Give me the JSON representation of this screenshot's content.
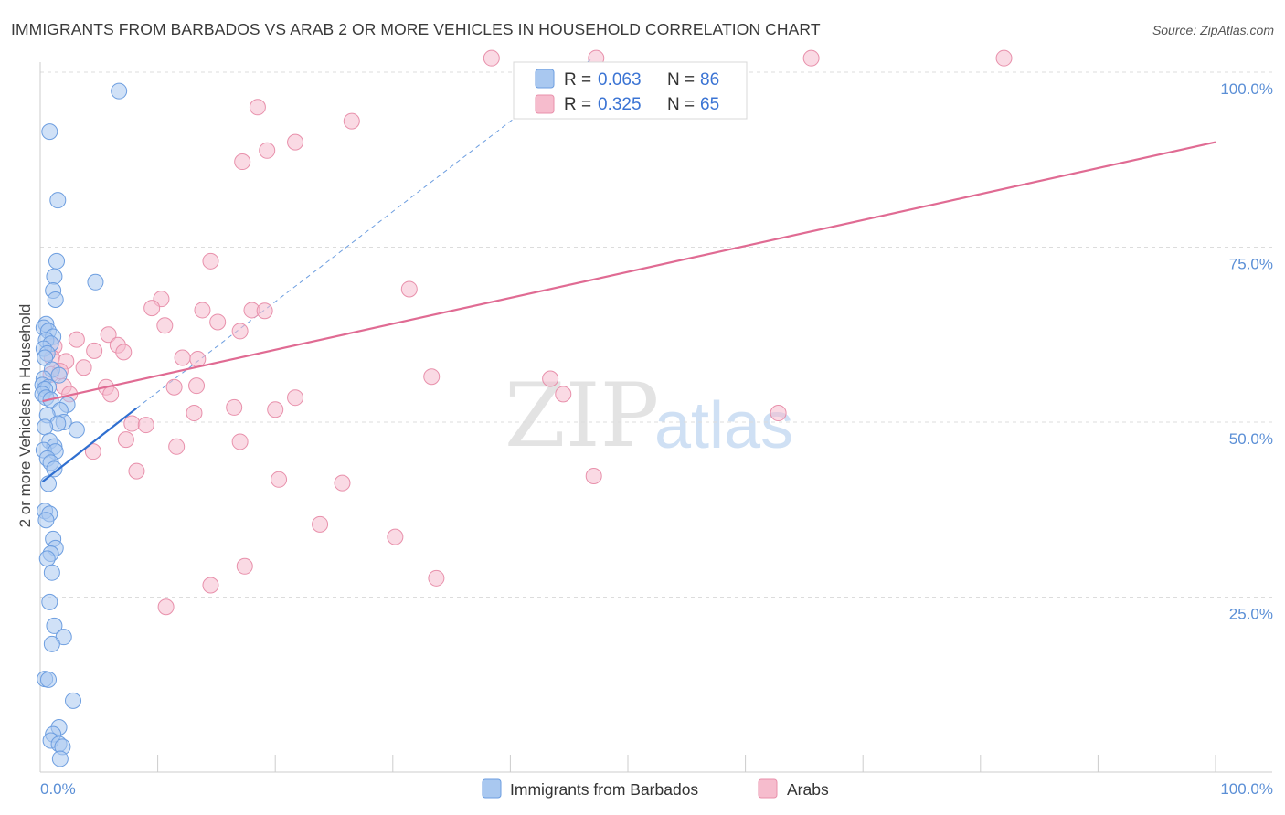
{
  "title": "IMMIGRANTS FROM BARBADOS VS ARAB 2 OR MORE VEHICLES IN HOUSEHOLD CORRELATION CHART",
  "source": "Source: ZipAtlas.com",
  "watermark": {
    "left": "ZIP",
    "right": "atlas"
  },
  "colors": {
    "blue_fill": "#a9c8f0",
    "blue_stroke": "#6d9ee0",
    "blue_line": "#2f6fd0",
    "pink_fill": "#f6bccd",
    "pink_stroke": "#e890ab",
    "pink_line": "#e06b93",
    "tick_text": "#5b8fd6",
    "grid": "#dcdcdc"
  },
  "legend_box": {
    "rows": [
      {
        "r_label": "R =",
        "r_value": "0.063",
        "n_label": "N =",
        "n_value": "86"
      },
      {
        "r_label": "R =",
        "r_value": "0.325",
        "n_label": "N =",
        "n_value": "65"
      }
    ]
  },
  "chart_data": {
    "type": "scatter",
    "title": "IMMIGRANTS FROM BARBADOS VS ARAB 2 OR MORE VEHICLES IN HOUSEHOLD CORRELATION CHART",
    "xlabel": "",
    "ylabel": "2 or more Vehicles in Household",
    "xlim": [
      0,
      100
    ],
    "ylim": [
      0,
      100
    ],
    "x_tick_labels": [
      "0.0%",
      "100.0%"
    ],
    "y_tick_labels": [
      {
        "value": 25,
        "label": "25.0%"
      },
      {
        "value": 50,
        "label": "50.0%"
      },
      {
        "value": 75,
        "label": "75.0%"
      },
      {
        "value": 100,
        "label": "100.0%"
      }
    ],
    "grid": true,
    "legend_position": "bottom",
    "series": [
      {
        "name": "Immigrants from Barbados",
        "color": "#a9c8f0",
        "trend": {
          "x": [
            0.2,
            8.2
          ],
          "y": [
            41.5,
            52.0
          ]
        },
        "trend_extension": {
          "x": [
            8.2,
            47.0
          ],
          "y": [
            52.0,
            102.0
          ]
        },
        "points": [
          [
            6.7,
            97.3
          ],
          [
            0.8,
            91.5
          ],
          [
            1.5,
            81.7
          ],
          [
            1.4,
            73.0
          ],
          [
            1.2,
            70.8
          ],
          [
            4.7,
            70.0
          ],
          [
            1.1,
            68.8
          ],
          [
            1.3,
            67.5
          ],
          [
            0.5,
            64.0
          ],
          [
            0.3,
            63.5
          ],
          [
            0.7,
            63.0
          ],
          [
            1.1,
            62.2
          ],
          [
            0.5,
            61.7
          ],
          [
            0.9,
            61.2
          ],
          [
            0.3,
            60.5
          ],
          [
            0.6,
            59.8
          ],
          [
            0.4,
            59.2
          ],
          [
            1.0,
            57.5
          ],
          [
            1.6,
            56.7
          ],
          [
            0.3,
            56.2
          ],
          [
            0.2,
            55.3
          ],
          [
            0.7,
            55.0
          ],
          [
            0.4,
            54.7
          ],
          [
            0.2,
            54.0
          ],
          [
            0.5,
            53.5
          ],
          [
            0.9,
            53.2
          ],
          [
            2.3,
            52.5
          ],
          [
            1.7,
            51.7
          ],
          [
            0.6,
            51.0
          ],
          [
            2.0,
            50.0
          ],
          [
            1.5,
            49.8
          ],
          [
            0.4,
            49.3
          ],
          [
            3.1,
            48.9
          ],
          [
            0.8,
            47.3
          ],
          [
            1.2,
            46.5
          ],
          [
            0.3,
            46.0
          ],
          [
            1.3,
            45.8
          ],
          [
            0.6,
            44.8
          ],
          [
            0.9,
            44.2
          ],
          [
            1.2,
            43.3
          ],
          [
            0.7,
            41.2
          ],
          [
            0.4,
            37.3
          ],
          [
            0.8,
            36.9
          ],
          [
            0.5,
            36.0
          ],
          [
            1.1,
            33.3
          ],
          [
            1.3,
            32.0
          ],
          [
            0.9,
            31.2
          ],
          [
            0.6,
            30.5
          ],
          [
            1.0,
            28.5
          ],
          [
            0.8,
            24.3
          ],
          [
            1.2,
            20.9
          ],
          [
            2.0,
            19.3
          ],
          [
            1.0,
            18.3
          ],
          [
            0.4,
            13.3
          ],
          [
            0.7,
            13.2
          ],
          [
            2.8,
            10.2
          ],
          [
            1.6,
            6.4
          ],
          [
            1.1,
            5.4
          ],
          [
            0.9,
            4.5
          ],
          [
            1.6,
            4.0
          ],
          [
            1.9,
            3.6
          ],
          [
            1.7,
            1.9
          ]
        ]
      },
      {
        "name": "Arabs",
        "color": "#f6bccd",
        "trend": {
          "x": [
            0.2,
            100.0
          ],
          "y": [
            53.0,
            90.0
          ]
        },
        "points": [
          [
            38.4,
            102.0
          ],
          [
            47.3,
            102.0
          ],
          [
            65.6,
            102.0
          ],
          [
            82.0,
            102.0
          ],
          [
            18.5,
            95.0
          ],
          [
            26.5,
            93.0
          ],
          [
            21.7,
            90.0
          ],
          [
            19.3,
            88.8
          ],
          [
            17.2,
            87.2
          ],
          [
            14.5,
            73.0
          ],
          [
            10.3,
            67.6
          ],
          [
            9.5,
            66.3
          ],
          [
            31.4,
            69.0
          ],
          [
            13.8,
            66.0
          ],
          [
            15.1,
            64.3
          ],
          [
            18.0,
            66.0
          ],
          [
            19.1,
            65.9
          ],
          [
            17.0,
            63.0
          ],
          [
            10.6,
            63.8
          ],
          [
            5.8,
            62.5
          ],
          [
            3.1,
            61.8
          ],
          [
            6.6,
            61.0
          ],
          [
            1.2,
            60.8
          ],
          [
            4.6,
            60.2
          ],
          [
            7.1,
            60.0
          ],
          [
            1.0,
            59.2
          ],
          [
            12.1,
            59.2
          ],
          [
            13.4,
            59.0
          ],
          [
            2.2,
            58.7
          ],
          [
            3.7,
            57.8
          ],
          [
            1.7,
            57.3
          ],
          [
            0.9,
            56.8
          ],
          [
            33.3,
            56.5
          ],
          [
            43.4,
            56.2
          ],
          [
            13.3,
            55.2
          ],
          [
            2.0,
            55.1
          ],
          [
            5.6,
            55.0
          ],
          [
            11.4,
            55.0
          ],
          [
            6.0,
            54.0
          ],
          [
            2.5,
            54.0
          ],
          [
            44.5,
            54.0
          ],
          [
            21.7,
            53.5
          ],
          [
            16.5,
            52.1
          ],
          [
            20.0,
            51.8
          ],
          [
            13.1,
            51.3
          ],
          [
            62.8,
            51.3
          ],
          [
            7.8,
            49.8
          ],
          [
            9.0,
            49.6
          ],
          [
            7.3,
            47.5
          ],
          [
            17.0,
            47.2
          ],
          [
            11.6,
            46.5
          ],
          [
            4.5,
            45.8
          ],
          [
            8.2,
            43.0
          ],
          [
            20.3,
            41.8
          ],
          [
            25.7,
            41.3
          ],
          [
            47.1,
            42.3
          ],
          [
            23.8,
            35.4
          ],
          [
            30.2,
            33.6
          ],
          [
            17.4,
            29.4
          ],
          [
            33.7,
            27.7
          ],
          [
            14.5,
            26.7
          ],
          [
            10.7,
            23.6
          ]
        ]
      }
    ]
  },
  "bottom_legend": [
    {
      "label": "Immigrants from Barbados"
    },
    {
      "label": "Arabs"
    }
  ]
}
